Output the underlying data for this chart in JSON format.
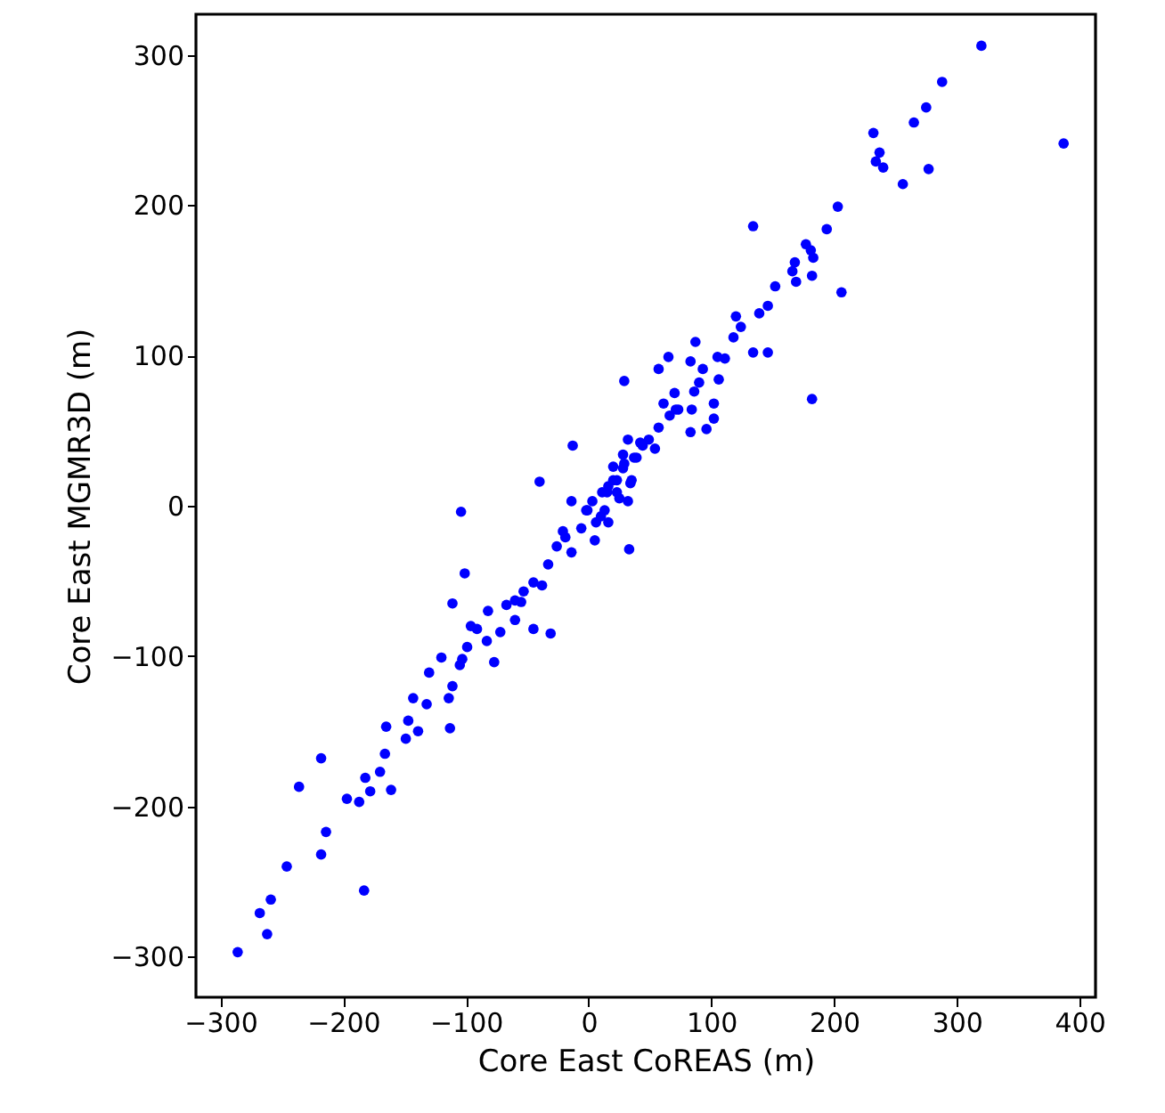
{
  "chart_data": {
    "type": "scatter",
    "xlabel": "Core East CoREAS (m)",
    "ylabel": "Core East MGMR3D (m)",
    "xlim": [
      -320,
      413
    ],
    "ylim": [
      -327,
      327
    ],
    "xticks": [
      -300,
      -200,
      -100,
      0,
      100,
      200,
      300,
      400
    ],
    "yticks": [
      -300,
      -200,
      -100,
      0,
      100,
      200,
      300
    ],
    "grid": false,
    "marker": "circle",
    "x": [
      320,
      288,
      275,
      265,
      232,
      237,
      234,
      240,
      277,
      256,
      387,
      203,
      194,
      134,
      177,
      181,
      183,
      168,
      166,
      169,
      182,
      206,
      152,
      146,
      139,
      120,
      124,
      118,
      134,
      146,
      87,
      65,
      57,
      83,
      105,
      111,
      93,
      106,
      90,
      86,
      70,
      102,
      61,
      73,
      84,
      182,
      102,
      29,
      -13,
      -40,
      -104,
      -14,
      83,
      96,
      71,
      66,
      57,
      49,
      54,
      42,
      32,
      28,
      37,
      20,
      28,
      35,
      23,
      16,
      11,
      23,
      3,
      13,
      -1,
      6,
      -6,
      16,
      -21,
      32,
      33,
      -101,
      -111,
      -45,
      -31,
      -183,
      -218,
      -236,
      -214,
      -218,
      -246,
      -259,
      -268,
      -262,
      -286,
      -197,
      -187,
      -182,
      -178,
      -161,
      -170,
      -166,
      -165,
      -149,
      -147,
      -139,
      -143,
      -132,
      -130,
      -120,
      -113,
      -111,
      -114,
      -105,
      -99,
      -91,
      -83,
      -77,
      -72,
      -82,
      -67,
      -60,
      -53,
      -45,
      -38,
      -33,
      -26,
      -19,
      -14,
      -2,
      5,
      10,
      15,
      20,
      25,
      29,
      34,
      39,
      44,
      -96,
      -103,
      -60,
      -55
    ],
    "series": [
      {
        "color": "#0000ff",
        "values": [
          306,
          282,
          265,
          255,
          248,
          235,
          229,
          225,
          224,
          214,
          241,
          199,
          184,
          186,
          174,
          170,
          165,
          162,
          156,
          149,
          153,
          142,
          146,
          133,
          128,
          126,
          119,
          112,
          102,
          102,
          109,
          99,
          91,
          96,
          99,
          98,
          91,
          84,
          82,
          76,
          75,
          68,
          68,
          64,
          64,
          71,
          58,
          83,
          40,
          16,
          -4,
          3,
          49,
          51,
          64,
          60,
          52,
          44,
          38,
          42,
          44,
          34,
          32,
          26,
          25,
          17,
          17,
          13,
          9,
          9,
          3,
          -3,
          -3,
          -11,
          -15,
          -11,
          -17,
          3,
          -29,
          -45,
          -65,
          -82,
          -85,
          -256,
          -168,
          -187,
          -217,
          -232,
          -240,
          -262,
          -271,
          -285,
          -297,
          -195,
          -197,
          -181,
          -190,
          -189,
          -177,
          -165,
          -147,
          -155,
          -143,
          -150,
          -128,
          -132,
          -111,
          -101,
          -148,
          -120,
          -128,
          -106,
          -94,
          -82,
          -90,
          -104,
          -84,
          -70,
          -66,
          -63,
          -57,
          -51,
          -53,
          -39,
          -27,
          -21,
          -31,
          -3,
          -23,
          -7,
          9,
          17,
          5,
          28,
          15,
          32,
          40,
          -80,
          -102,
          -76,
          -64
        ]
      }
    ]
  }
}
